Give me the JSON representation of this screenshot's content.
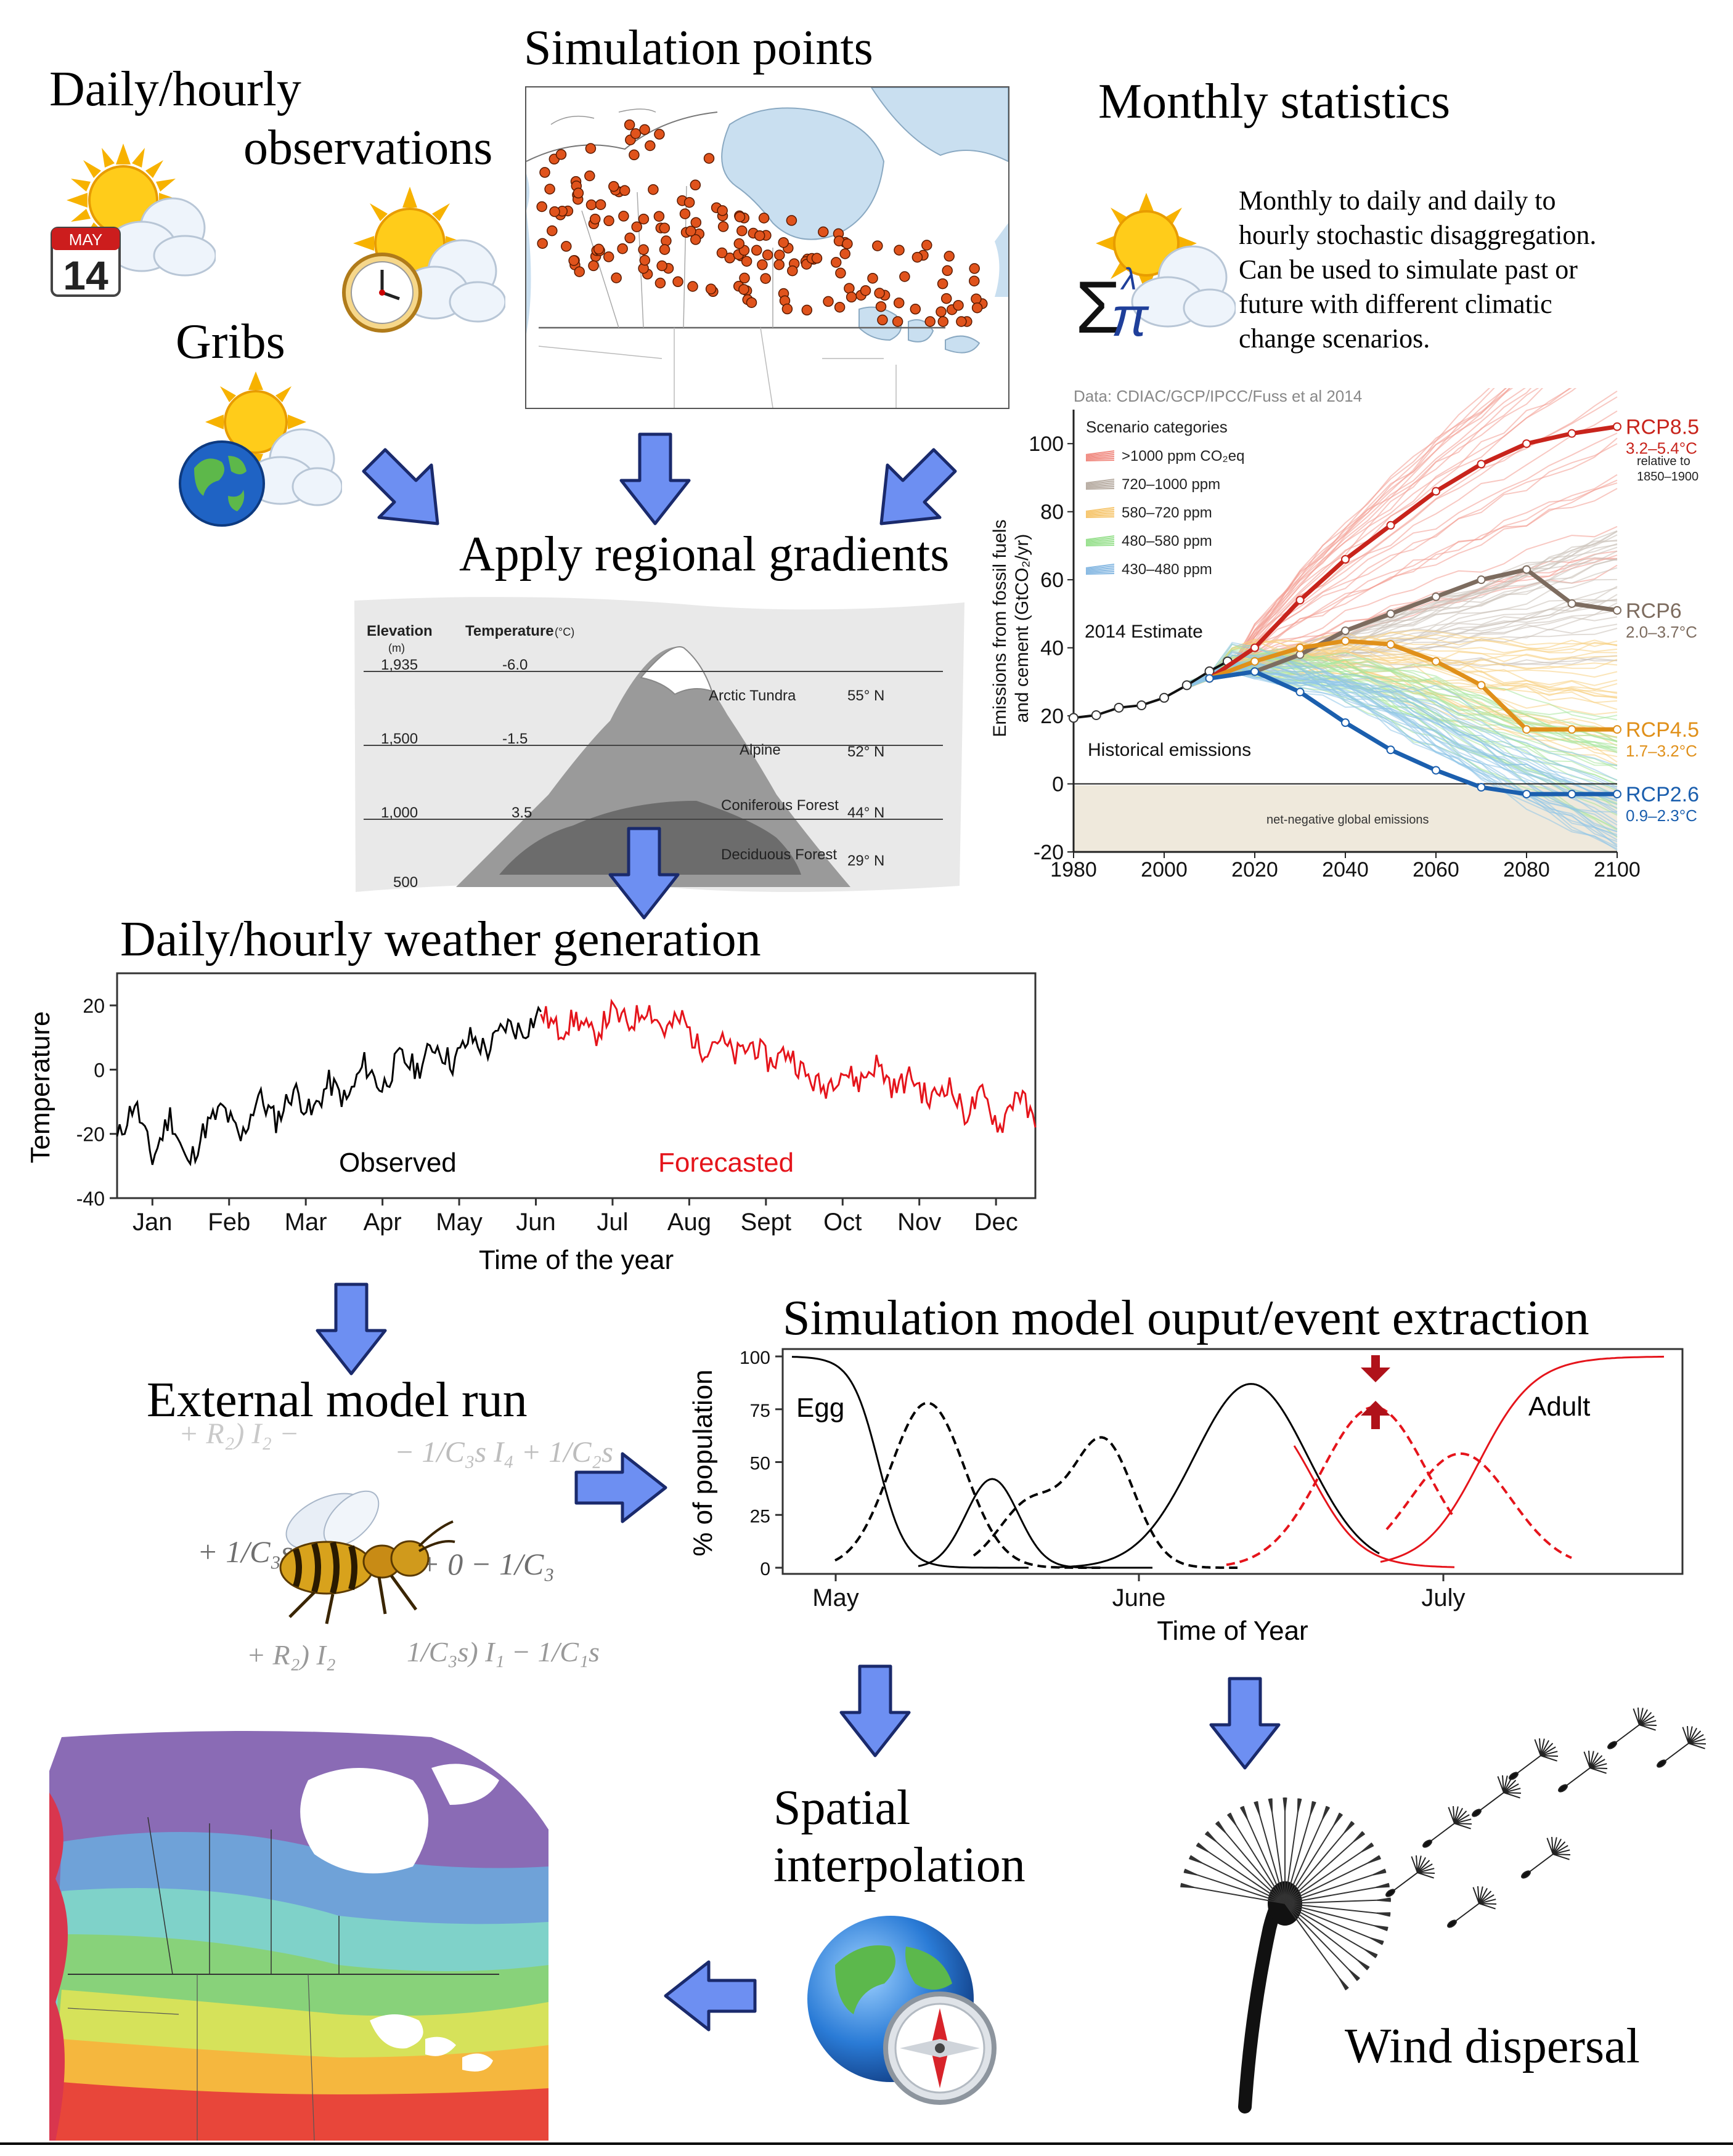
{
  "labels": {
    "daily_hourly": "Daily/hourly",
    "observations": "observations",
    "simulation_points": "Simulation points",
    "monthly_statistics": "Monthly statistics",
    "gribs": "Gribs",
    "apply_gradients": "Apply regional gradients",
    "weather_generation": "Daily/hourly weather generation",
    "external_model_run": "External model run",
    "sim_output_title": "Simulation model ouput/event extraction",
    "spatial_line1": "Spatial",
    "spatial_line2": "interpolation",
    "wind_dispersal": "Wind dispersal"
  },
  "monthly_description": [
    "Monthly to daily and daily to",
    "hourly  stochastic disaggregation.",
    "Can be used to simulate past or",
    "future with different climatic",
    "change scenarios."
  ],
  "calendar": {
    "month": "MAY",
    "day": "14"
  },
  "icons": [
    "sun-cloud-calendar-icon",
    "sun-cloud-clock-icon",
    "sun-cloud-globe-icon",
    "sun-cloud-sigma-pi-icon",
    "globe-compass-icon",
    "wasp-icon",
    "dandelion-icon"
  ],
  "colors": {
    "arrow": "#6d8ff2",
    "arrow_stroke": "#1a2a6c",
    "forecast": "#e5141b",
    "dot": "#e0531c"
  },
  "formulas": {
    "f1": "+ R₂) I₂ − ",
    "f2": "− 1/C₃s I₄ + 1/C₂s",
    "f3": "+ 1/C₃s +",
    "f4": "+ 0 − 1/C₃",
    "f5": "+ R₂) I₂",
    "f6": "1/C₃s) I₁ − 1/C₁s"
  },
  "elevation_diagram": {
    "header_elevation": "Elevation",
    "header_unit": "(m)",
    "header_temperature": "Temperature",
    "header_temp_unit": "(°C)",
    "rows": [
      {
        "elev": "1,935",
        "temp": "-6.0",
        "zone": "Arctic Tundra",
        "lat": "55° N"
      },
      {
        "elev": "1,500",
        "temp": "-1.5",
        "zone": "Alpine",
        "lat": "52° N"
      },
      {
        "elev": "1,000",
        "temp": "3.5",
        "zone": "Coniferous Forest",
        "lat": "44° N"
      },
      {
        "elev": "500",
        "temp": "",
        "zone": "Deciduous Forest",
        "lat": "29° N"
      }
    ]
  },
  "chart_data": [
    {
      "type": "line",
      "title": "",
      "source": "Data: CDIAC/GCP/IPCC/Fuss et al 2014",
      "ylabel_line1": "Emissions from fossil fuels",
      "ylabel_line2": "and cement (GtCO₂/yr)",
      "xlim": [
        1980,
        2100
      ],
      "ylim": [
        -20,
        110
      ],
      "xticks": [
        1980,
        2000,
        2020,
        2040,
        2060,
        2080,
        2100
      ],
      "yticks": [
        -20,
        0,
        20,
        40,
        60,
        80,
        100
      ],
      "legend_title": "Scenario categories",
      "legend": [
        {
          "label": ">1000 ppm CO₂eq",
          "color": "#f08a80"
        },
        {
          "label": "720–1000 ppm",
          "color": "#b7aca2"
        },
        {
          "label": "580–720 ppm",
          "color": "#f6c56c"
        },
        {
          "label": "480–580 ppm",
          "color": "#98e08e"
        },
        {
          "label": "430–480 ppm",
          "color": "#86b8e2"
        }
      ],
      "annotations": {
        "estimate": "2014 Estimate",
        "historical": "Historical emissions",
        "negative": "net-negative global emissions",
        "relative": "relative to",
        "relative_period": "1850–1900"
      },
      "historical": {
        "x": [
          1980,
          1985,
          1990,
          1995,
          2000,
          2005,
          2010,
          2014
        ],
        "y": [
          19.4,
          20.2,
          22.4,
          23.1,
          25.3,
          29.0,
          33.1,
          36.0
        ]
      },
      "series": [
        {
          "name": "RCP8.5",
          "range": "3.2–5.4°C",
          "color": "#c8241c",
          "x": [
            2010,
            2020,
            2030,
            2040,
            2050,
            2060,
            2070,
            2080,
            2090,
            2100
          ],
          "y": [
            31,
            40,
            54,
            66,
            76,
            86,
            94,
            100,
            103,
            105
          ]
        },
        {
          "name": "RCP6",
          "range": "2.0–3.7°C",
          "color": "#7d6c5f",
          "x": [
            2010,
            2020,
            2030,
            2040,
            2050,
            2060,
            2070,
            2080,
            2090,
            2100
          ],
          "y": [
            31,
            33,
            38,
            45,
            50,
            55,
            60,
            63,
            53,
            51
          ]
        },
        {
          "name": "RCP4.5",
          "range": "1.7–3.2°C",
          "color": "#e0901a",
          "x": [
            2010,
            2020,
            2030,
            2040,
            2050,
            2060,
            2070,
            2080,
            2090,
            2100
          ],
          "y": [
            31,
            36,
            40,
            42,
            41,
            36,
            29,
            16,
            16,
            16
          ]
        },
        {
          "name": "RCP2.6",
          "range": "0.9–2.3°C",
          "color": "#1b5fae",
          "x": [
            2010,
            2020,
            2030,
            2040,
            2050,
            2060,
            2070,
            2080,
            2090,
            2100
          ],
          "y": [
            31,
            33,
            27,
            18,
            10,
            4,
            -1,
            -3,
            -3,
            -3
          ]
        }
      ]
    },
    {
      "type": "line",
      "title": "",
      "ylabel": "Temperature",
      "xlabel": "Time of the year",
      "ylim": [
        -40,
        30
      ],
      "yticks": [
        -40,
        -20,
        0,
        20
      ],
      "months": [
        "Jan",
        "Feb",
        "Mar",
        "Apr",
        "May",
        "Jun",
        "Jul",
        "Aug",
        "Sept",
        "Oct",
        "Nov",
        "Dec"
      ],
      "series": [
        {
          "name": "Observed",
          "color": "#000000",
          "x": [
            1,
            8,
            15,
            22,
            29,
            36,
            43,
            50,
            57,
            64,
            71,
            78,
            85,
            92,
            99,
            106,
            113,
            120,
            127,
            134,
            141,
            148,
            155,
            162,
            169
          ],
          "y": [
            -22,
            -10,
            -28,
            -14,
            -30,
            -18,
            -12,
            -22,
            -8,
            -16,
            -6,
            -14,
            -4,
            -10,
            2,
            -6,
            4,
            0,
            8,
            2,
            10,
            6,
            14,
            12,
            18
          ]
        },
        {
          "name": "Forecasted",
          "color": "#e5141b",
          "x": [
            169,
            176,
            183,
            190,
            197,
            204,
            211,
            218,
            225,
            232,
            239,
            246,
            253,
            260,
            267,
            274,
            281,
            288,
            295,
            302,
            309,
            316,
            323,
            330,
            337,
            344,
            351,
            358,
            365
          ],
          "y": [
            18,
            12,
            16,
            10,
            18,
            14,
            20,
            12,
            16,
            6,
            10,
            4,
            8,
            2,
            6,
            -2,
            -6,
            0,
            -4,
            2,
            -6,
            -2,
            -10,
            -4,
            -14,
            -8,
            -18,
            -6,
            -18
          ]
        }
      ]
    },
    {
      "type": "line",
      "title": "",
      "ylabel": "% of population",
      "xlabel": "Time of Year",
      "ylim": [
        0,
        100
      ],
      "yticks": [
        0,
        25,
        50,
        75,
        100
      ],
      "xticks": [
        "May",
        "June",
        "July"
      ],
      "stage_labels": {
        "first": "Egg",
        "last": "Adult"
      }
    }
  ]
}
